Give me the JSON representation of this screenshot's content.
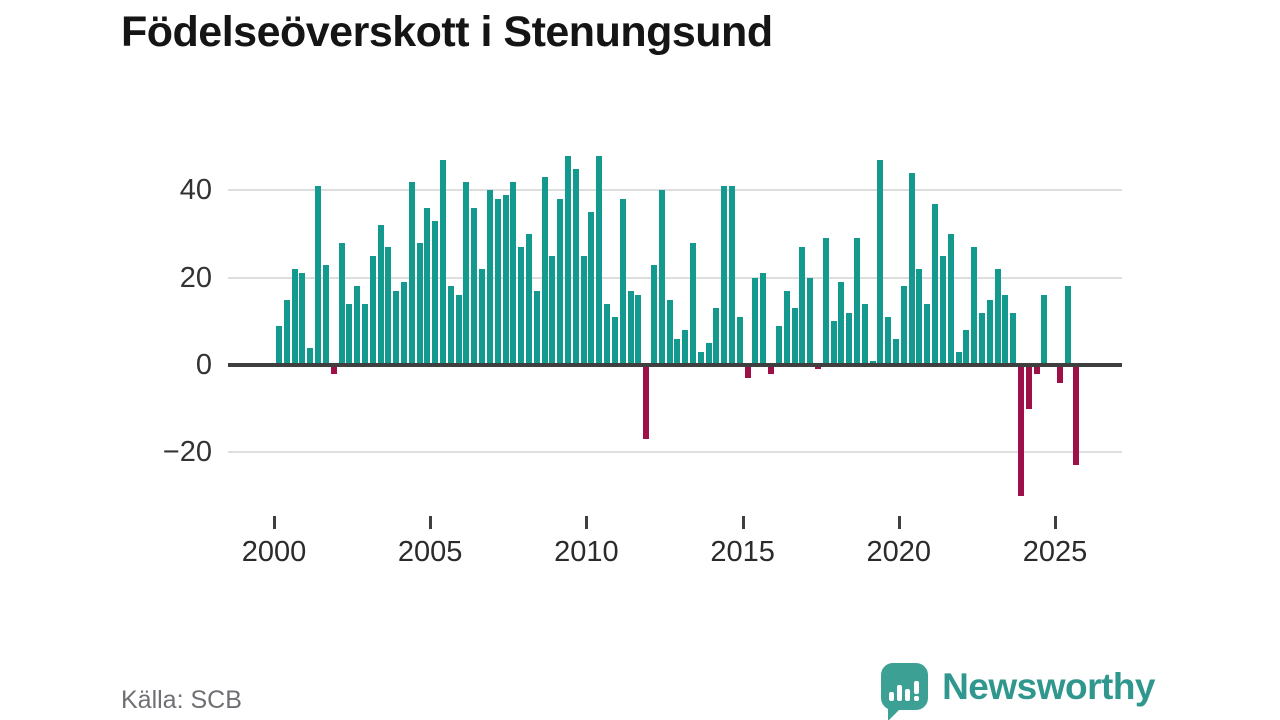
{
  "header": {
    "title": "Födelseöverskott i Stenungsund"
  },
  "footer": {
    "source_label": "Källa: SCB",
    "brand": "Newsworthy"
  },
  "colors": {
    "positive": "#14998f",
    "negative": "#a01048",
    "grid": "#dedede",
    "axis": "#3f3f3f",
    "brand_teal": "#2f978d",
    "logo_bubble": "#3da095",
    "text": "#2b2b2b",
    "muted_text": "#6f6f74"
  },
  "chart_data": {
    "type": "bar",
    "title": "Födelseöverskott i Stenungsund",
    "frequency": "quarterly",
    "x_start": "2000-Q1",
    "x_end": "2025-Q3",
    "grid": true,
    "ylim": [
      -32,
      50
    ],
    "y_ticks": [
      {
        "value": 40,
        "label": "40"
      },
      {
        "value": 20,
        "label": "20"
      },
      {
        "value": 0,
        "label": "0"
      },
      {
        "value": -20,
        "label": "−20"
      }
    ],
    "x_ticks": [
      {
        "year": 2000,
        "label": "2000"
      },
      {
        "year": 2005,
        "label": "2005"
      },
      {
        "year": 2010,
        "label": "2010"
      },
      {
        "year": 2015,
        "label": "2015"
      },
      {
        "year": 2020,
        "label": "2020"
      },
      {
        "year": 2025,
        "label": "2025"
      }
    ],
    "values": [
      9,
      15,
      22,
      21,
      4,
      41,
      23,
      -2,
      28,
      14,
      18,
      14,
      25,
      32,
      27,
      17,
      19,
      42,
      28,
      36,
      33,
      47,
      18,
      16,
      42,
      36,
      22,
      40,
      38,
      39,
      42,
      27,
      30,
      17,
      43,
      25,
      38,
      48,
      45,
      25,
      35,
      48,
      14,
      11,
      38,
      17,
      16,
      -17,
      23,
      40,
      15,
      6,
      8,
      28,
      3,
      5,
      13,
      41,
      41,
      11,
      -3,
      20,
      21,
      -2,
      9,
      17,
      13,
      27,
      20,
      -1,
      29,
      10,
      19,
      12,
      29,
      14,
      1,
      47,
      11,
      6,
      18,
      44,
      22,
      14,
      37,
      25,
      30,
      3,
      8,
      27,
      12,
      15,
      22,
      16,
      12,
      -30,
      -10,
      -2,
      16,
      0,
      -4,
      18,
      -23
    ]
  }
}
